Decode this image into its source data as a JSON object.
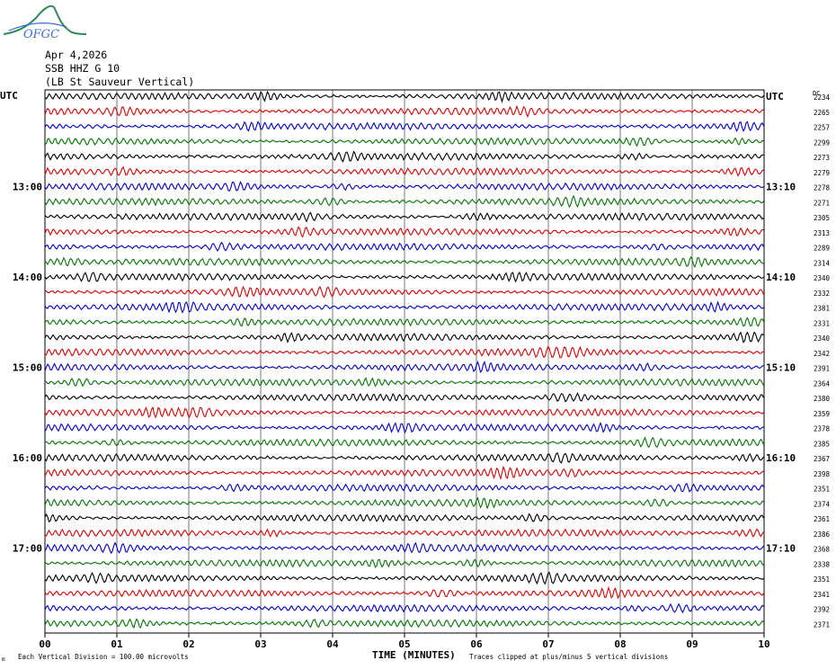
{
  "logo": {
    "text": "OFGC"
  },
  "header": {
    "date": "Apr 4,2026",
    "station": "SSB HHZ G 10",
    "location": "(LB  St Sauveur Vertical)"
  },
  "axis": {
    "left_tz": "UTC",
    "right_tz": "UTC",
    "right_col_header": "DC",
    "xlabel": "TIME (MINUTES)"
  },
  "footer": {
    "scale_note": "Each Vertical Division =  100.00 microvolts",
    "clip_note": "Traces clipped at plus/minus 5 vertical divisions",
    "corner_mark": "m"
  },
  "chart_data": {
    "type": "line",
    "title": "SSB HHZ G 10",
    "xlabel": "TIME (MINUTES)",
    "xlim": [
      0,
      10
    ],
    "x_ticks": [
      "00",
      "01",
      "02",
      "03",
      "04",
      "05",
      "06",
      "07",
      "08",
      "09",
      "10"
    ],
    "left_hour_labels": [
      {
        "row": 6,
        "label": "13:00"
      },
      {
        "row": 12,
        "label": "14:00"
      },
      {
        "row": 18,
        "label": "15:00"
      },
      {
        "row": 24,
        "label": "16:00"
      },
      {
        "row": 30,
        "label": "17:00"
      }
    ],
    "right_time_labels": [
      {
        "row": 0,
        "label": "UTC"
      },
      {
        "row": 6,
        "label": "13:10"
      },
      {
        "row": 12,
        "label": "14:10"
      },
      {
        "row": 18,
        "label": "15:10"
      },
      {
        "row": 24,
        "label": "16:10"
      },
      {
        "row": 30,
        "label": "17:10"
      }
    ],
    "trace_colors": [
      "#000000",
      "#dd0000",
      "#0000cc",
      "#007700"
    ],
    "dc_offsets": [
      2234,
      2265,
      2257,
      2299,
      2273,
      2279,
      2278,
      2271,
      2305,
      2313,
      2289,
      2314,
      2340,
      2332,
      2381,
      2331,
      2340,
      2342,
      2391,
      2364,
      2380,
      2359,
      2378,
      2385,
      2367,
      2398,
      2351,
      2374,
      2361,
      2386,
      2368,
      2338,
      2351,
      2341,
      2392,
      2371
    ],
    "grid": true,
    "traces_clipped_divisions": 5,
    "vertical_division_microvolts": 100.0
  }
}
